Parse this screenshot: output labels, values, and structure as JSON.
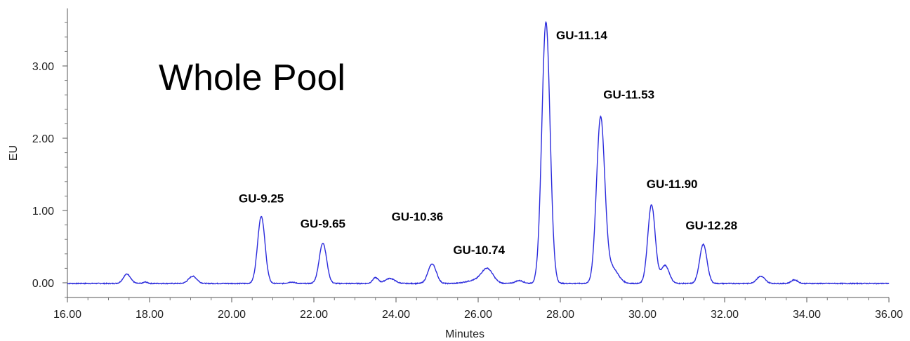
{
  "chart_data": {
    "type": "line",
    "title": "Whole Pool",
    "xlabel": "Minutes",
    "ylabel": "EU",
    "xlim": [
      16.0,
      36.0
    ],
    "ylim": [
      -0.2,
      3.8
    ],
    "x_ticks": [
      "16.00",
      "18.00",
      "20.00",
      "22.00",
      "24.00",
      "26.00",
      "28.00",
      "30.00",
      "32.00",
      "34.00",
      "36.00"
    ],
    "x_tick_values": [
      16,
      18,
      20,
      22,
      24,
      26,
      28,
      30,
      32,
      34,
      36
    ],
    "y_ticks": [
      "0.00",
      "1.00",
      "2.00",
      "3.00"
    ],
    "y_tick_values": [
      0,
      1,
      2,
      3
    ],
    "series_color": "#2b2bdc",
    "baseline": -0.01,
    "peaks": [
      {
        "x": 17.45,
        "height": 0.13,
        "width": 0.09
      },
      {
        "x": 17.9,
        "height": 0.02,
        "width": 0.05
      },
      {
        "x": 19.05,
        "height": 0.1,
        "width": 0.1
      },
      {
        "x": 20.72,
        "height": 0.93,
        "width": 0.09
      },
      {
        "x": 21.45,
        "height": 0.02,
        "width": 0.08
      },
      {
        "x": 22.22,
        "height": 0.56,
        "width": 0.09
      },
      {
        "x": 23.5,
        "height": 0.08,
        "width": 0.07
      },
      {
        "x": 23.85,
        "height": 0.07,
        "width": 0.12
      },
      {
        "x": 24.88,
        "height": 0.27,
        "width": 0.1
      },
      {
        "x": 26.22,
        "height": 0.2,
        "width": 0.14
      },
      {
        "x": 25.9,
        "height": 0.04,
        "width": 0.2
      },
      {
        "x": 27.0,
        "height": 0.04,
        "width": 0.1
      },
      {
        "x": 27.65,
        "height": 3.62,
        "width": 0.1
      },
      {
        "x": 28.98,
        "height": 2.27,
        "width": 0.1
      },
      {
        "x": 29.25,
        "height": 0.22,
        "width": 0.15
      },
      {
        "x": 30.22,
        "height": 1.09,
        "width": 0.09
      },
      {
        "x": 30.55,
        "height": 0.25,
        "width": 0.1
      },
      {
        "x": 31.48,
        "height": 0.54,
        "width": 0.09
      },
      {
        "x": 32.88,
        "height": 0.1,
        "width": 0.1
      },
      {
        "x": 33.7,
        "height": 0.05,
        "width": 0.08
      }
    ],
    "annotations": [
      {
        "text": "GU-9.25",
        "x": 20.72,
        "y": 1.11
      },
      {
        "text": "GU-9.65",
        "x": 22.22,
        "y": 0.76
      },
      {
        "text": "GU-10.36",
        "x": 24.52,
        "y": 0.86
      },
      {
        "text": "GU-10.74",
        "x": 26.02,
        "y": 0.4
      },
      {
        "text": "GU-11.14",
        "x": 28.52,
        "y": 3.37
      },
      {
        "text": "GU-11.53",
        "x": 29.67,
        "y": 2.55
      },
      {
        "text": "GU-11.90",
        "x": 30.72,
        "y": 1.31
      },
      {
        "text": "GU-12.28",
        "x": 31.68,
        "y": 0.74
      }
    ]
  }
}
